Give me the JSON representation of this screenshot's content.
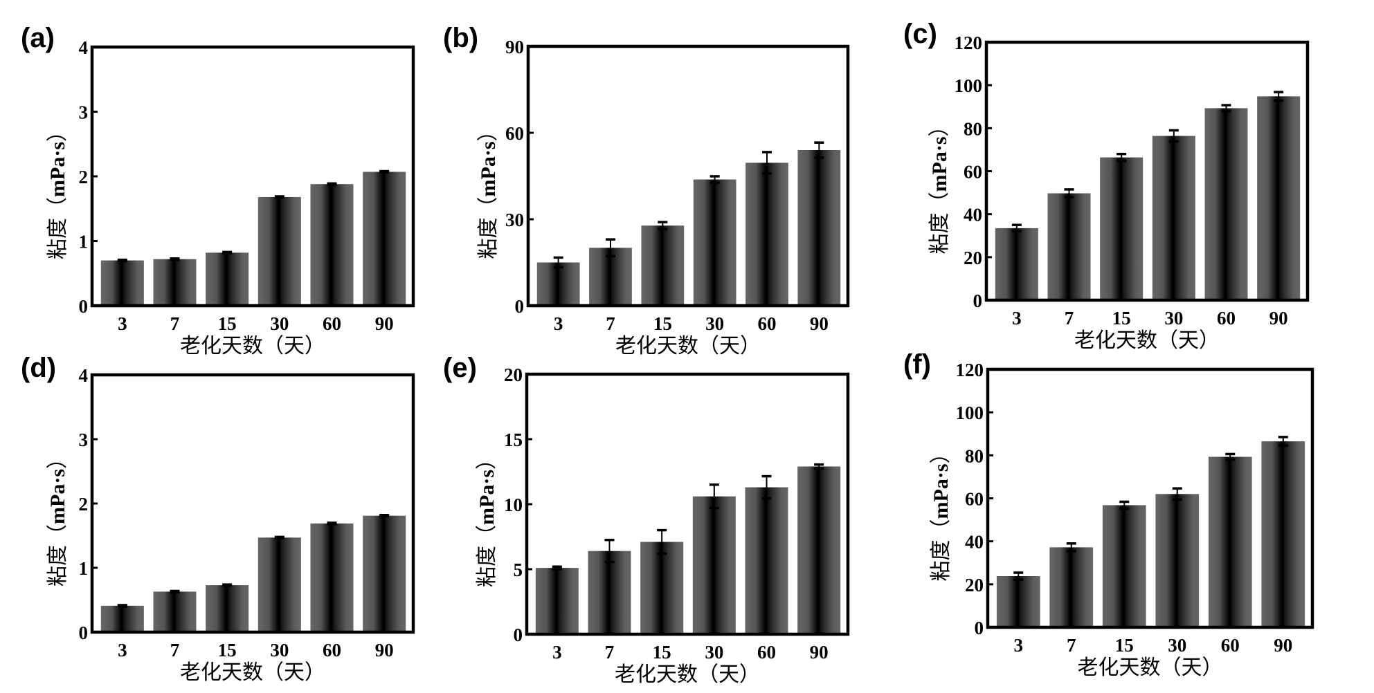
{
  "figure": {
    "description": "Six bar charts of viscosity vs. aging days with error bars"
  },
  "chart_data": [
    {
      "type": "bar",
      "panel": "(a)",
      "title": "",
      "xlabel": "老化天数（天）",
      "ylabel": "粘度（mPa·s）",
      "ylabel_cn": "粘度（",
      "ylabel_unit": "mPa·s",
      "ylabel_close": "）",
      "categories": [
        "3",
        "7",
        "15",
        "30",
        "60",
        "90"
      ],
      "values": [
        0.7,
        0.72,
        0.82,
        1.68,
        1.88,
        2.07
      ],
      "errors": [
        0.01,
        0.01,
        0.01,
        0.01,
        0.01,
        0.01
      ],
      "ylim": [
        0,
        4
      ],
      "yticks": [
        "0",
        "1",
        "2",
        "3",
        "4"
      ],
      "ytick_values": [
        0,
        1,
        2,
        3,
        4
      ],
      "grid": false,
      "bar_color_edge": "#666666",
      "bar_color_center": "#000000"
    },
    {
      "type": "bar",
      "panel": "(b)",
      "title": "",
      "xlabel": "老化天数（天）",
      "ylabel": "粘度（mPa·s）",
      "ylabel_cn": "粘度（",
      "ylabel_unit": "mPa·s",
      "ylabel_close": "）",
      "categories": [
        "3",
        "7",
        "15",
        "30",
        "60",
        "90"
      ],
      "values": [
        15.0,
        20.1,
        27.8,
        43.8,
        49.6,
        54.0
      ],
      "errors": [
        1.7,
        2.9,
        1.2,
        1.1,
        3.7,
        2.6
      ],
      "ylim": [
        0,
        90
      ],
      "yticks": [
        "0",
        "30",
        "60",
        "90"
      ],
      "ytick_values": [
        0,
        30,
        60,
        90
      ],
      "grid": false,
      "bar_color_edge": "#666666",
      "bar_color_center": "#000000"
    },
    {
      "type": "bar",
      "panel": "(c)",
      "title": "",
      "xlabel": "老化天数（天）",
      "ylabel": "粘度（mPa·s）",
      "ylabel_cn": "粘度（",
      "ylabel_unit": "mPa·s",
      "ylabel_close": "）",
      "categories": [
        "3",
        "7",
        "15",
        "30",
        "60",
        "90"
      ],
      "values": [
        33.5,
        49.7,
        66.4,
        76.4,
        89.3,
        94.8
      ],
      "errors": [
        1.5,
        1.8,
        1.6,
        2.6,
        1.4,
        2.0
      ],
      "ylim": [
        0,
        120
      ],
      "yticks": [
        "0",
        "20",
        "40",
        "60",
        "80",
        "100",
        "120"
      ],
      "ytick_values": [
        0,
        20,
        40,
        60,
        80,
        100,
        120
      ],
      "grid": false,
      "bar_color_edge": "#666666",
      "bar_color_center": "#000000"
    },
    {
      "type": "bar",
      "panel": "(d)",
      "title": "",
      "xlabel": "老化天数（天）",
      "ylabel": "粘度（mPa·s）",
      "ylabel_cn": "粘度（",
      "ylabel_unit": "mPa·s",
      "ylabel_close": "）",
      "categories": [
        "3",
        "7",
        "15",
        "30",
        "60",
        "90"
      ],
      "values": [
        0.41,
        0.63,
        0.73,
        1.47,
        1.69,
        1.81
      ],
      "errors": [
        0.01,
        0.01,
        0.01,
        0.01,
        0.01,
        0.01
      ],
      "ylim": [
        0,
        4
      ],
      "yticks": [
        "0",
        "1",
        "2",
        "3",
        "4"
      ],
      "ytick_values": [
        0,
        1,
        2,
        3,
        4
      ],
      "grid": false,
      "bar_color_edge": "#666666",
      "bar_color_center": "#000000"
    },
    {
      "type": "bar",
      "panel": "(e)",
      "title": "",
      "xlabel": "老化天数（天）",
      "ylabel": "粘度（mPa·s）",
      "ylabel_cn": "粘度（",
      "ylabel_unit": "mPa·s",
      "ylabel_close": "）",
      "categories": [
        "3",
        "7",
        "15",
        "30",
        "60",
        "90"
      ],
      "values": [
        5.1,
        6.4,
        7.1,
        10.6,
        11.3,
        12.9
      ],
      "errors": [
        0.1,
        0.85,
        0.9,
        0.9,
        0.85,
        0.15
      ],
      "ylim": [
        0,
        20
      ],
      "yticks": [
        "0",
        "5",
        "10",
        "15",
        "20"
      ],
      "ytick_values": [
        0,
        5,
        10,
        15,
        20
      ],
      "grid": false,
      "bar_color_edge": "#666666",
      "bar_color_center": "#000000"
    },
    {
      "type": "bar",
      "panel": "(f)",
      "title": "",
      "xlabel": "老化天数（天）",
      "ylabel": "粘度（mPa·s）",
      "ylabel_cn": "粘度（",
      "ylabel_unit": "mPa·s",
      "ylabel_close": "）",
      "categories": [
        "3",
        "7",
        "15",
        "30",
        "60",
        "90"
      ],
      "values": [
        23.8,
        37.2,
        56.8,
        62.0,
        79.3,
        86.5
      ],
      "errors": [
        1.6,
        1.8,
        1.6,
        2.6,
        1.3,
        2.0
      ],
      "ylim": [
        0,
        120
      ],
      "yticks": [
        "0",
        "20",
        "40",
        "60",
        "80",
        "100",
        "120"
      ],
      "ytick_values": [
        0,
        20,
        40,
        60,
        80,
        100,
        120
      ],
      "grid": false,
      "bar_color_edge": "#666666",
      "bar_color_center": "#000000"
    }
  ]
}
